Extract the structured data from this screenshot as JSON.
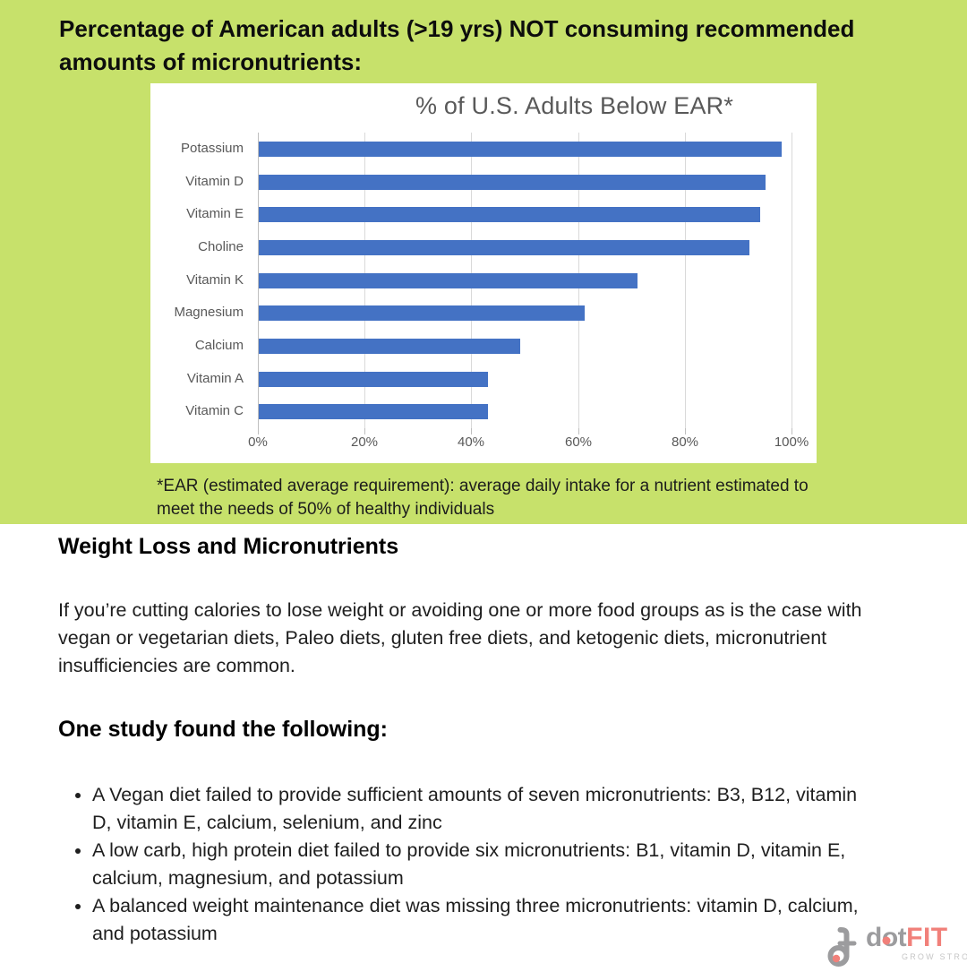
{
  "header": {
    "title": "Percentage of American adults (>19 yrs) NOT consuming recommended amounts of micronutrients:"
  },
  "chart_data": {
    "type": "bar",
    "orientation": "horizontal",
    "title": "% of U.S. Adults Below EAR*",
    "categories": [
      "Potassium",
      "Vitamin D",
      "Vitamin E",
      "Choline",
      "Vitamin K",
      "Magnesium",
      "Calcium",
      "Vitamin A",
      "Vitamin C"
    ],
    "values": [
      98,
      95,
      94,
      92,
      71,
      61,
      49,
      43,
      43
    ],
    "x_ticks": [
      "0%",
      "20%",
      "40%",
      "60%",
      "80%",
      "100%"
    ],
    "xlim": [
      0,
      100
    ],
    "grid": true,
    "legend": false,
    "bar_color": "#4472C4",
    "title_color": "#595959",
    "axis_label_color": "#595959"
  },
  "footnote": {
    "text": "*EAR (estimated average requirement): average daily intake for a nutrient estimated to meet the needs of 50% of healthy individuals"
  },
  "article": {
    "heading1": "Weight Loss and Micronutrients",
    "paragraph": "If you’re cutting calories to lose weight or avoiding one or more food groups as is the case with vegan or vegetarian diets, Paleo diets, gluten free diets, and ketogenic diets, micronutrient insufficiencies are common.",
    "heading2": "One study found the following:",
    "bullets": [
      "A Vegan diet failed to provide sufficient amounts of seven micronutrients: B3, B12, vitamin D, vitamin E, calcium, selenium, and zinc",
      "A low carb, high protein diet failed to provide six micronutrients: B1, vitamin D, vitamin E, calcium, magnesium, and potassium",
      "A balanced weight maintenance diet was missing three micronutrients: vitamin D, calcium, and potassium"
    ]
  },
  "logo": {
    "word_dot": "dot",
    "word_fit": "FIT",
    "tagline": "GROW STRONG.™"
  },
  "colors": {
    "background_green": "#C7E16B",
    "bar_blue": "#4472C4",
    "logo_gray": "#9C9C9E",
    "logo_red": "#F1807A",
    "gridline": "#D9D9D9"
  }
}
